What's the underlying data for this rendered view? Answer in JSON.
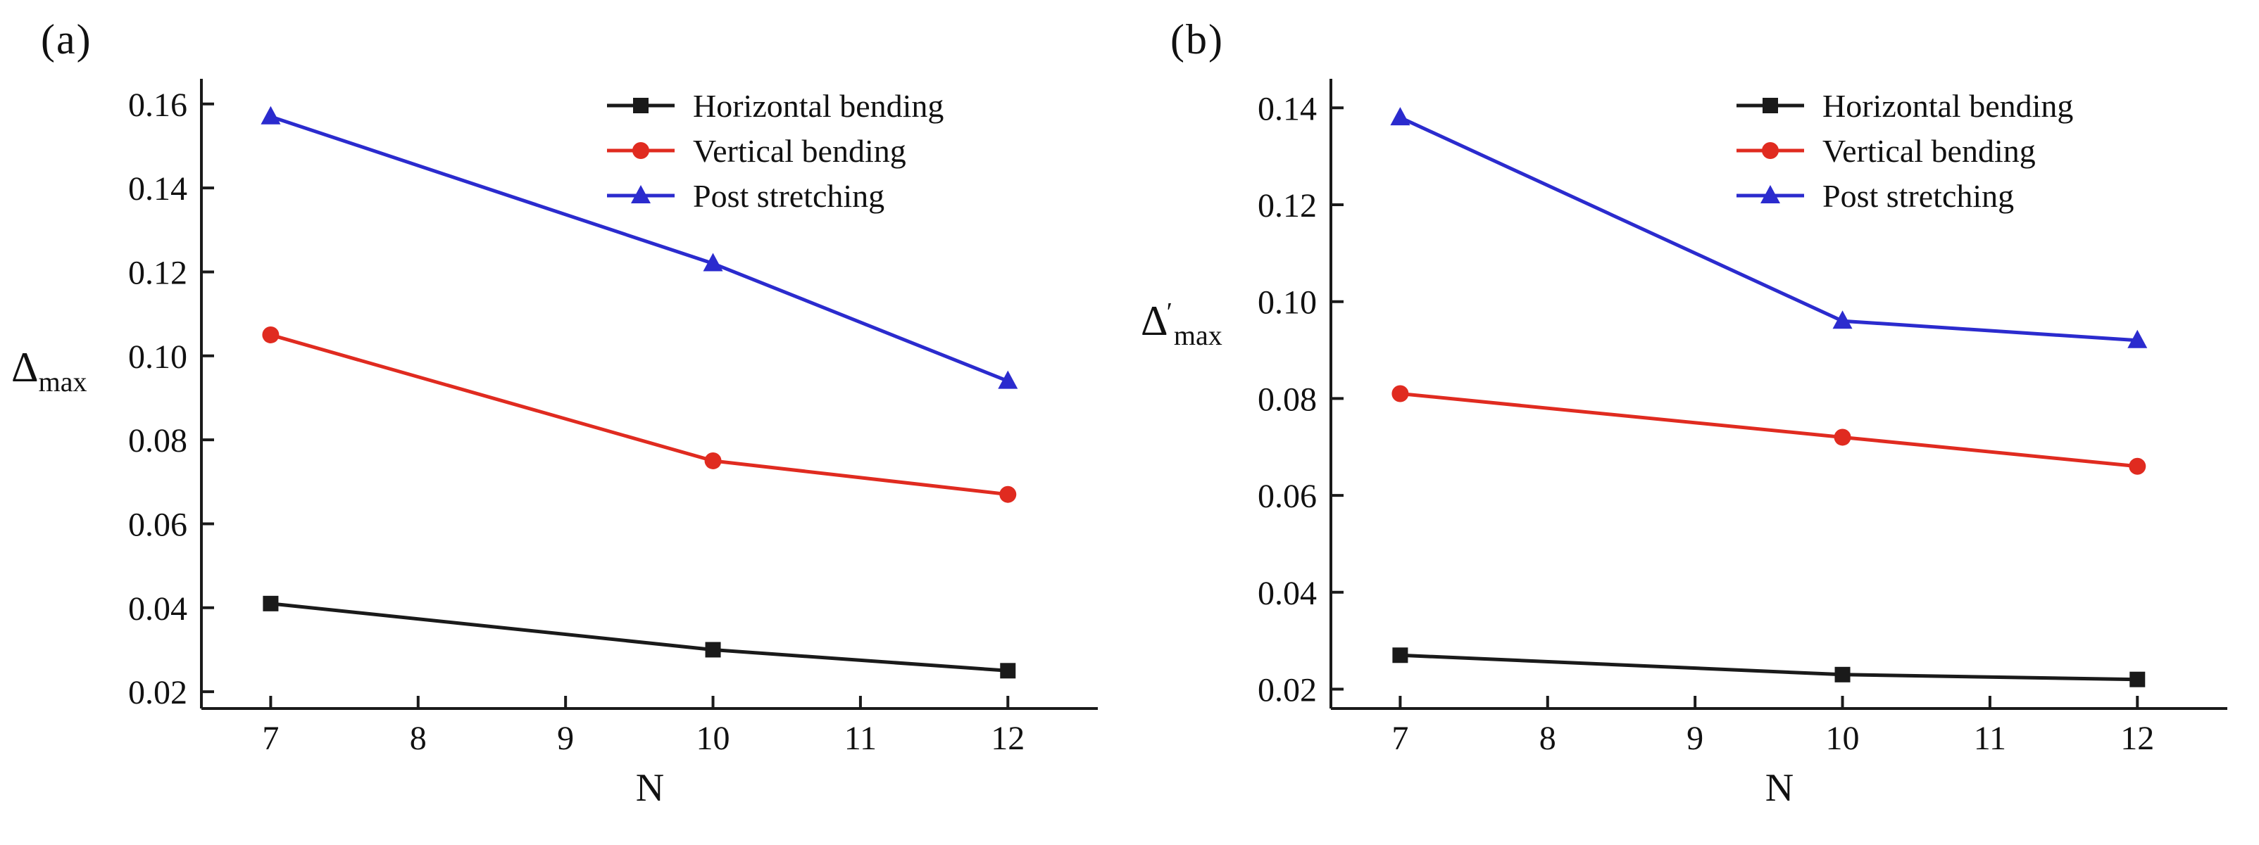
{
  "figure": {
    "background": "#ffffff",
    "axis_color": "#1a1a1a",
    "text_color": "#111111"
  },
  "chart_data": [
    {
      "type": "line",
      "panel_label": "(a)",
      "ylabel_symbol": "Δ",
      "ylabel_prime": "",
      "ylabel_sub": "max",
      "xlabel": "N",
      "x": [
        7,
        10,
        12
      ],
      "xticks": [
        7,
        8,
        9,
        10,
        11,
        12
      ],
      "yticks": [
        0.02,
        0.04,
        0.06,
        0.08,
        0.1,
        0.12,
        0.14,
        0.16
      ],
      "xlim": [
        6.53,
        12.61
      ],
      "ylim": [
        0.016,
        0.166
      ],
      "grid": false,
      "legend_position": "top-right",
      "series": [
        {
          "name": "Horizontal bending",
          "marker": "square",
          "color": "#1a1a1a",
          "values": [
            0.041,
            0.03,
            0.025
          ]
        },
        {
          "name": "Vertical bending",
          "marker": "circle",
          "color": "#e02b20",
          "values": [
            0.105,
            0.075,
            0.067
          ]
        },
        {
          "name": "Post stretching",
          "marker": "triangle",
          "color": "#2b2bce",
          "values": [
            0.157,
            0.122,
            0.094
          ]
        }
      ]
    },
    {
      "type": "line",
      "panel_label": "(b)",
      "ylabel_symbol": "Δ",
      "ylabel_prime": "′",
      "ylabel_sub": "max",
      "xlabel": "N",
      "x": [
        7,
        10,
        12
      ],
      "xticks": [
        7,
        8,
        9,
        10,
        11,
        12
      ],
      "yticks": [
        0.02,
        0.04,
        0.06,
        0.08,
        0.1,
        0.12,
        0.14
      ],
      "xlim": [
        6.53,
        12.61
      ],
      "ylim": [
        0.016,
        0.146
      ],
      "grid": false,
      "legend_position": "top-right",
      "series": [
        {
          "name": "Horizontal bending",
          "marker": "square",
          "color": "#1a1a1a",
          "values": [
            0.027,
            0.023,
            0.022
          ]
        },
        {
          "name": "Vertical bending",
          "marker": "circle",
          "color": "#e02b20",
          "values": [
            0.081,
            0.072,
            0.066
          ]
        },
        {
          "name": "Post stretching",
          "marker": "triangle",
          "color": "#2b2bce",
          "values": [
            0.138,
            0.096,
            0.092
          ]
        }
      ]
    }
  ]
}
